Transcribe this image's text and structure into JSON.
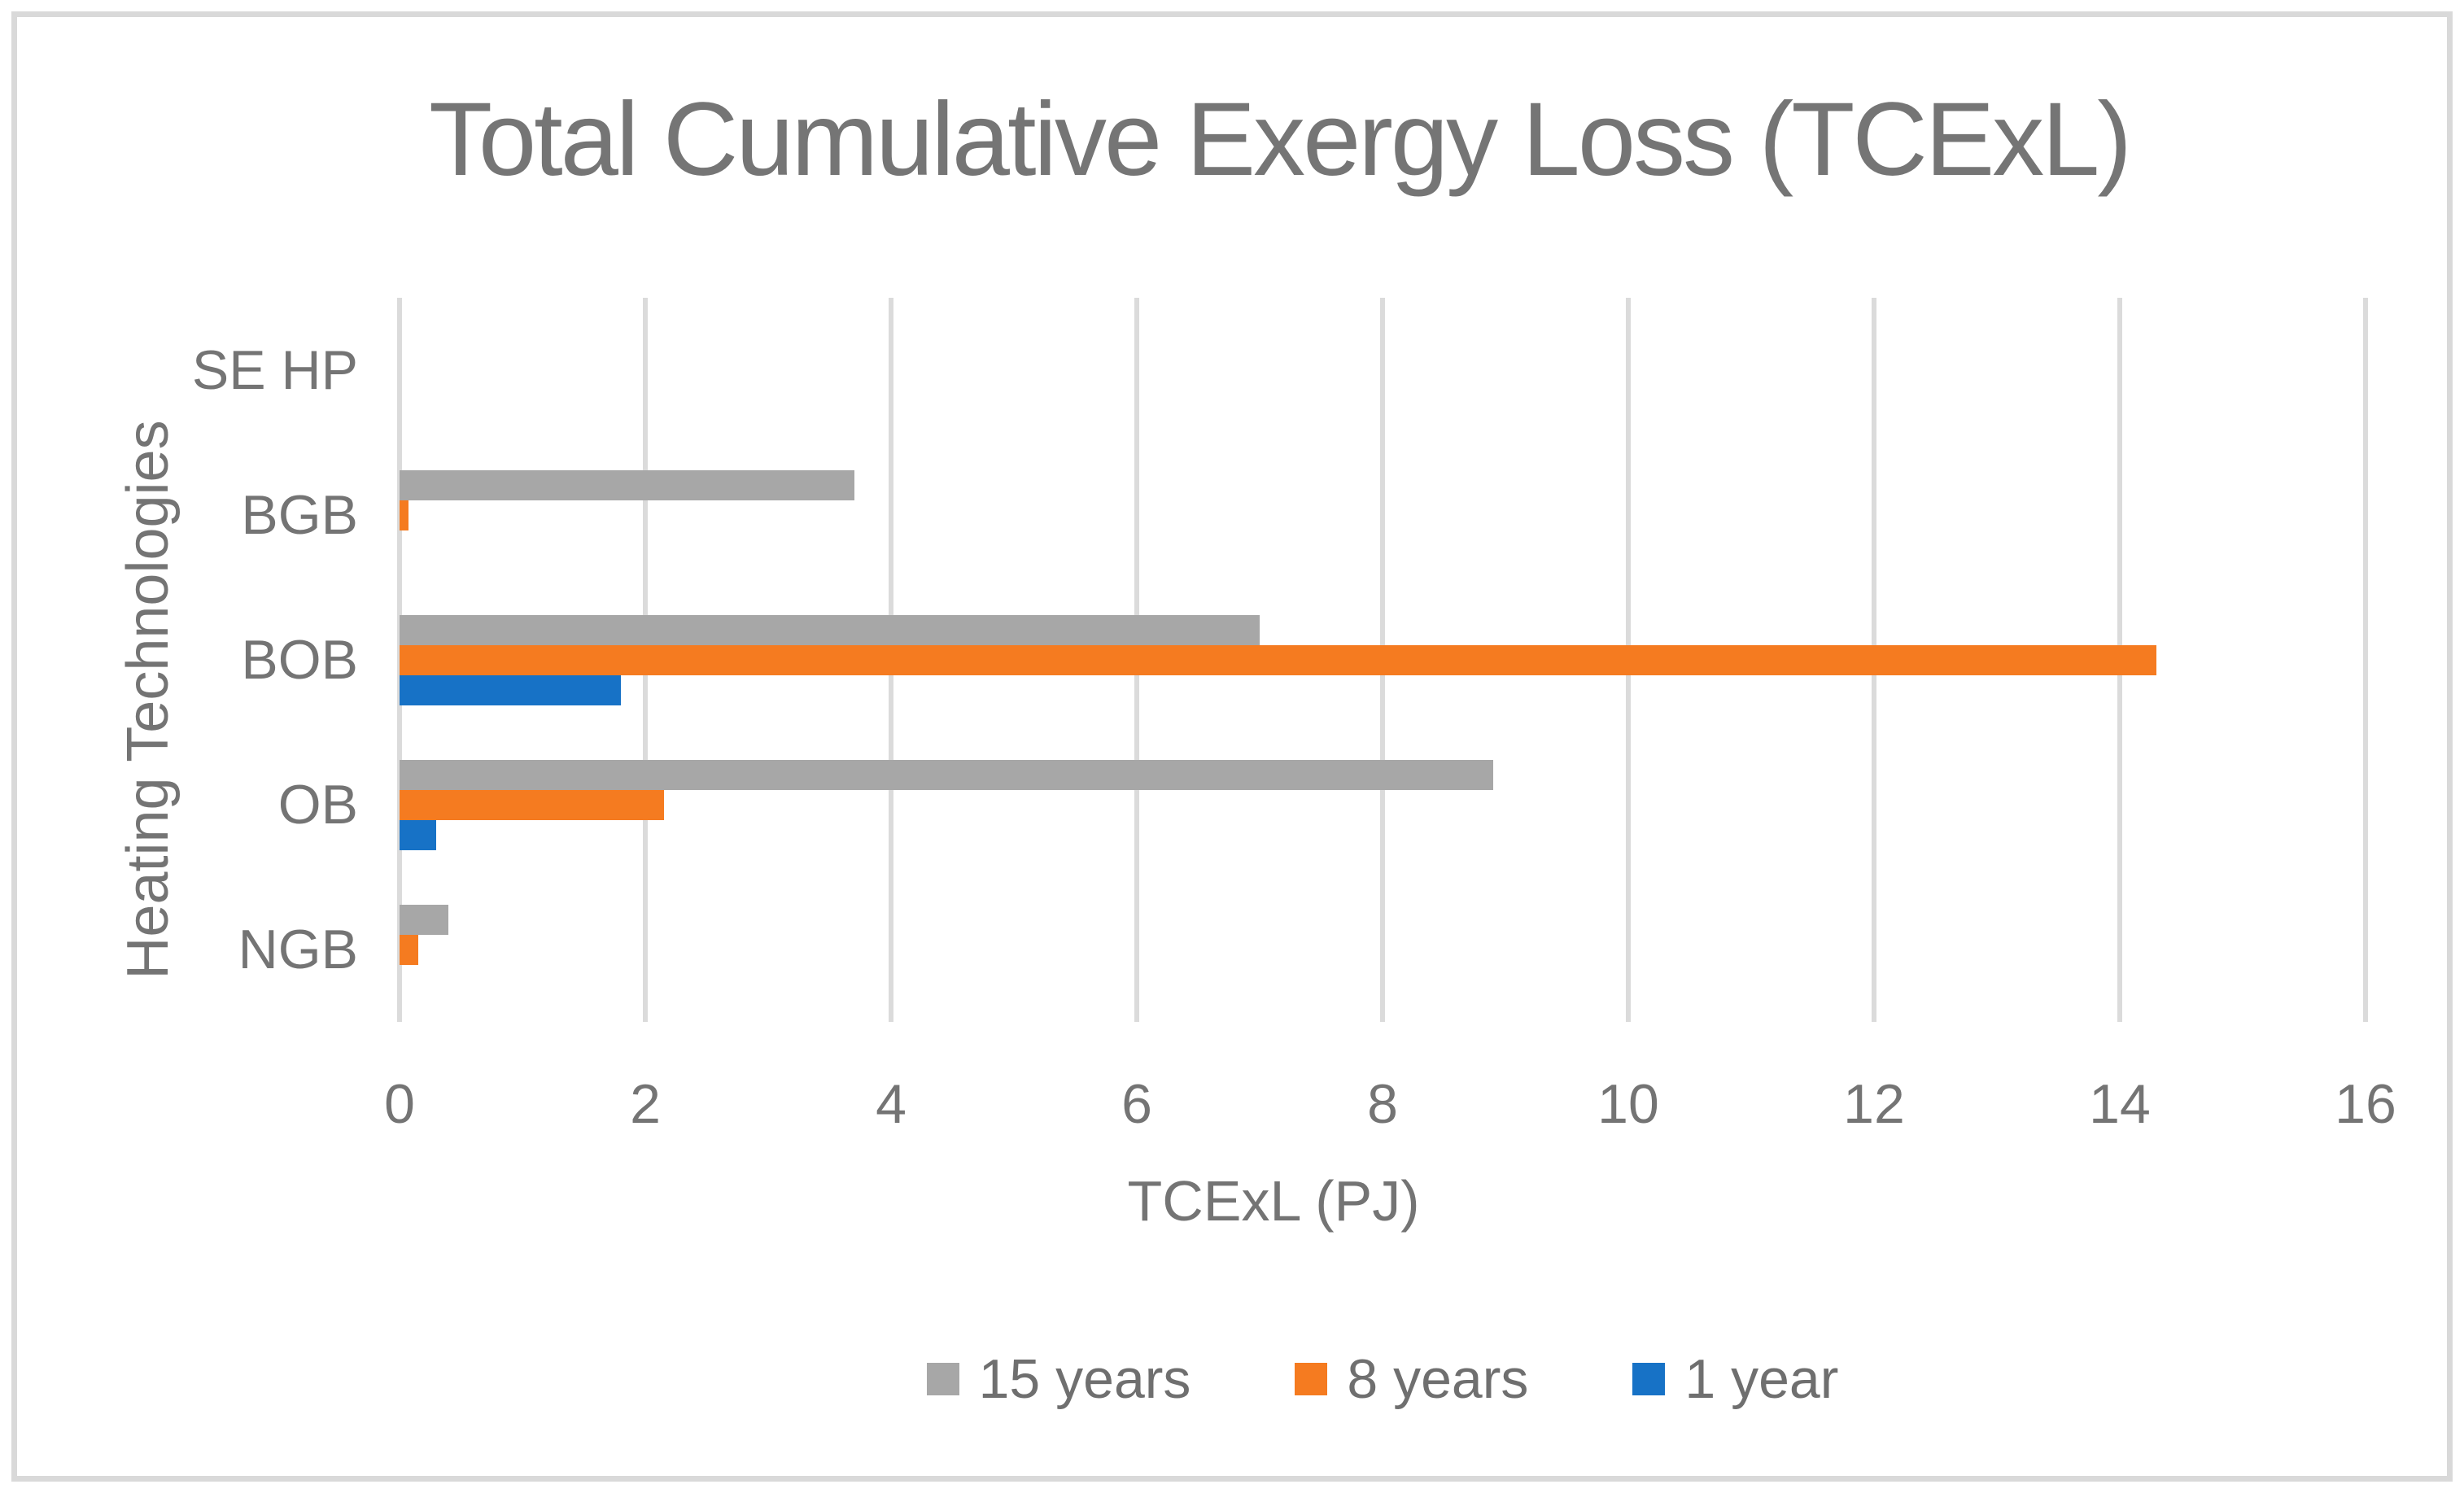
{
  "chart": {
    "title": "Total Cumulative Exergy Loss (TCExL)",
    "x_axis_title": "TCExL (PJ)",
    "y_axis_title": "Heating Technologies"
  },
  "chart_data": {
    "type": "bar",
    "orientation": "horizontal",
    "title": "Total Cumulative Exergy Loss (TCExL)",
    "xlabel": "TCExL (PJ)",
    "ylabel": "Heating Technologies",
    "categories": [
      "SE HP",
      "BGB",
      "BOB",
      "OB",
      "NGB"
    ],
    "series": [
      {
        "name": "15 years",
        "color": "#A7A7A7",
        "values": [
          0,
          3.7,
          7.0,
          8.9,
          0.4
        ]
      },
      {
        "name": "8 years",
        "color": "#F57B20",
        "values": [
          0,
          0.07,
          14.3,
          2.15,
          0.15
        ]
      },
      {
        "name": "1 year",
        "color": "#1772C6",
        "values": [
          0,
          0,
          1.8,
          0.3,
          0
        ]
      }
    ],
    "xlim": [
      0,
      16
    ],
    "xticks": [
      0,
      2,
      4,
      6,
      8,
      10,
      12,
      14,
      16
    ],
    "grid": true,
    "legend_position": "bottom"
  },
  "style": {
    "text_color": "#747474",
    "gridline_color": "#DBDBDB",
    "border_color": "#D9D9D9",
    "background": "#FFFFFF"
  }
}
